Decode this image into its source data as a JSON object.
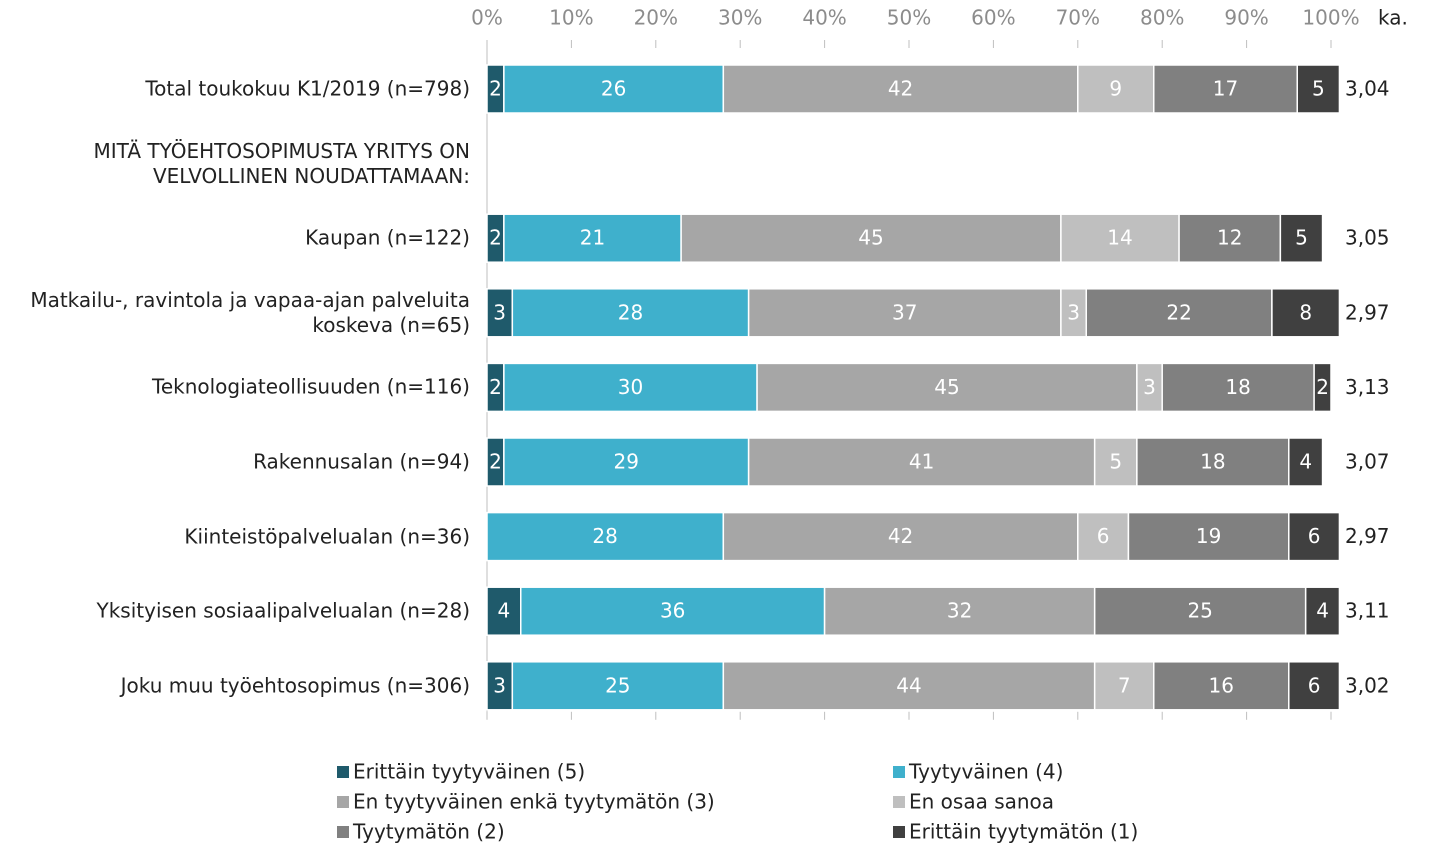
{
  "chart_data": {
    "type": "stacked-bar-horizontal",
    "categories": [
      "Total toukokuu K1/2019 (n=798)",
      "MITÄ TYÖEHTOSOPIMUSTA YRITYS ON VELVOLLINEN NOUDATTAMAAN:",
      "Kaupan (n=122)",
      "Matkailu-, ravintola ja vapaa-ajan palveluita koskeva (n=65)",
      "Teknologiateollisuuden (n=116)",
      "Rakennusalan (n=94)",
      "Kiinteistöpalvelualan (n=36)",
      "Yksityisen sosiaalipalvelualan (n=28)",
      "Joku muu työehtosopimus (n=306)"
    ],
    "series": [
      {
        "name": "Erittäin tyytyväinen (5)",
        "color": "#1f5a6b",
        "values": [
          2,
          null,
          2,
          3,
          2,
          2,
          null,
          4,
          3
        ]
      },
      {
        "name": "Tyytyväinen (4)",
        "color": "#3fb0cc",
        "values": [
          26,
          null,
          21,
          28,
          30,
          29,
          28,
          36,
          25
        ]
      },
      {
        "name": "En tyytyväinen enkä tyytymätön (3)",
        "color": "#a6a6a6",
        "values": [
          42,
          null,
          45,
          37,
          45,
          41,
          42,
          32,
          44
        ]
      },
      {
        "name": "En osaa sanoa",
        "color": "#bfbfbf",
        "values": [
          9,
          null,
          14,
          3,
          3,
          5,
          6,
          null,
          7
        ]
      },
      {
        "name": "Tyytymätön (2)",
        "color": "#808080",
        "values": [
          17,
          null,
          12,
          22,
          18,
          18,
          19,
          25,
          16
        ]
      },
      {
        "name": "Erittäin tyytymätön (1)",
        "color": "#404040",
        "values": [
          5,
          null,
          5,
          8,
          2,
          4,
          6,
          4,
          6
        ]
      }
    ],
    "mean": {
      "name": "ka.",
      "values": [
        3.04,
        null,
        3.05,
        2.97,
        3.13,
        3.07,
        2.97,
        3.11,
        3.02
      ],
      "value_labels": [
        "3,04",
        null,
        "3,05",
        "2,97",
        "3,13",
        "3,07",
        "2,97",
        "3,11",
        "3,02"
      ]
    },
    "xlim": [
      0,
      100
    ],
    "xticks": [
      {
        "value": 0,
        "label": "0%"
      },
      {
        "value": 10,
        "label": "10%"
      },
      {
        "value": 20,
        "label": "20%"
      },
      {
        "value": 30,
        "label": "30%"
      },
      {
        "value": 40,
        "label": "40%"
      },
      {
        "value": 50,
        "label": "50%"
      },
      {
        "value": 60,
        "label": "60%"
      },
      {
        "value": 70,
        "label": "70%"
      },
      {
        "value": 80,
        "label": "80%"
      },
      {
        "value": 90,
        "label": "90%"
      },
      {
        "value": 100,
        "label": "100%"
      }
    ]
  }
}
